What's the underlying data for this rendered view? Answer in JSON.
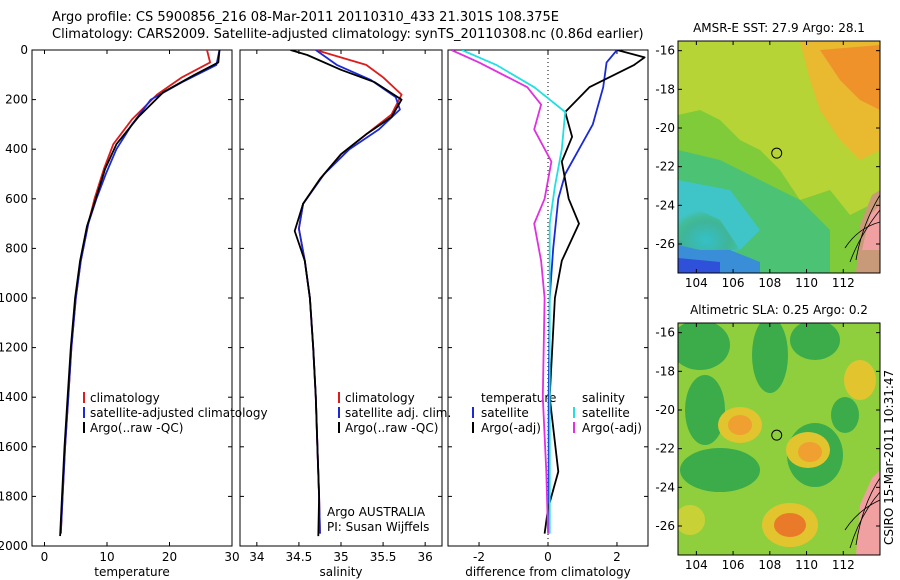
{
  "header": {
    "line1": "Argo profile: CS 5900856_216 08-Mar-2011 20110310_433 21.301S 108.375E",
    "line2": "Climatology: CARS2009. Satellite-adjusted climatology: synTS_20110308.nc (0.86d earlier)"
  },
  "side_text": "CSIRO 15-Mar-2011 10:31:47",
  "colors": {
    "climatology": "#dd1c1c",
    "satellite": "#1a2ad6",
    "argo": "#000000",
    "salinity_satellite": "#22e0e0",
    "salinity_argo": "#e030e0"
  },
  "chart_data": [
    {
      "type": "line",
      "xlabel": "temperature",
      "ylabel": "",
      "xlim": [
        -2,
        30
      ],
      "ylim": [
        2000,
        0
      ],
      "y_reversed": true,
      "xticks": [
        "0",
        "10",
        "20",
        "30"
      ],
      "yticks": [
        "0",
        "200",
        "400",
        "600",
        "800",
        "1000",
        "1200",
        "1400",
        "1600",
        "1800",
        "2000"
      ],
      "legend": [
        "climatology",
        "satellite-adjusted climatology",
        "Argo(..raw -QC)"
      ],
      "series": [
        {
          "name": "climatology",
          "color": "#dd1c1c",
          "points": [
            [
              26,
              0
            ],
            [
              26.5,
              50
            ],
            [
              22,
              110
            ],
            [
              18,
              180
            ],
            [
              14,
              280
            ],
            [
              11,
              380
            ],
            [
              9.5,
              480
            ],
            [
              8,
              600
            ],
            [
              7,
              700
            ],
            [
              5.8,
              850
            ],
            [
              5,
              1000
            ],
            [
              4.3,
              1200
            ],
            [
              3.8,
              1400
            ],
            [
              3.3,
              1600
            ],
            [
              2.9,
              1800
            ],
            [
              2.6,
              1950
            ]
          ]
        },
        {
          "name": "satellite-adjusted climatology",
          "color": "#1a2ad6",
          "points": [
            [
              28,
              0
            ],
            [
              27.5,
              60
            ],
            [
              22,
              130
            ],
            [
              17,
              200
            ],
            [
              14,
              300
            ],
            [
              11.5,
              400
            ],
            [
              9.8,
              500
            ],
            [
              8.3,
              600
            ],
            [
              7,
              700
            ],
            [
              5.8,
              850
            ],
            [
              5,
              1000
            ],
            [
              4.3,
              1200
            ],
            [
              3.8,
              1400
            ],
            [
              3.3,
              1600
            ],
            [
              2.9,
              1800
            ],
            [
              2.6,
              1950
            ]
          ]
        },
        {
          "name": "Argo(..raw -QC)",
          "color": "#000000",
          "points": [
            [
              28,
              0
            ],
            [
              27.8,
              50
            ],
            [
              24,
              100
            ],
            [
              19,
              170
            ],
            [
              15,
              270
            ],
            [
              11.5,
              380
            ],
            [
              9.7,
              480
            ],
            [
              8.2,
              600
            ],
            [
              6.8,
              710
            ],
            [
              5.7,
              850
            ],
            [
              4.9,
              1000
            ],
            [
              4.2,
              1200
            ],
            [
              3.7,
              1400
            ],
            [
              3.2,
              1600
            ],
            [
              2.8,
              1800
            ],
            [
              2.5,
              1960
            ]
          ]
        }
      ]
    },
    {
      "type": "line",
      "xlabel": "salinity",
      "xlim": [
        33.8,
        36.2
      ],
      "ylim": [
        2000,
        0
      ],
      "xticks": [
        "34",
        "34.5",
        "35",
        "35.5",
        "36"
      ],
      "legend": [
        "climatology",
        "satellite adj. clim.",
        "Argo(..raw -QC)"
      ],
      "annotation": [
        "Argo AUSTRALIA",
        "PI: Susan Wijffels"
      ],
      "series": [
        {
          "name": "climatology",
          "color": "#dd1c1c",
          "points": [
            [
              34.7,
              0
            ],
            [
              35.3,
              60
            ],
            [
              35.5,
              110
            ],
            [
              35.72,
              180
            ],
            [
              35.6,
              260
            ],
            [
              35.3,
              340
            ],
            [
              35.0,
              420
            ],
            [
              34.75,
              520
            ],
            [
              34.55,
              620
            ],
            [
              34.5,
              720
            ],
            [
              34.57,
              850
            ],
            [
              34.63,
              1000
            ],
            [
              34.67,
              1200
            ],
            [
              34.7,
              1400
            ],
            [
              34.72,
              1600
            ],
            [
              34.74,
              1800
            ],
            [
              34.75,
              1950
            ]
          ]
        },
        {
          "name": "satellite adj. clim.",
          "color": "#1a2ad6",
          "points": [
            [
              34.7,
              0
            ],
            [
              34.95,
              60
            ],
            [
              35.35,
              120
            ],
            [
              35.65,
              190
            ],
            [
              35.7,
              240
            ],
            [
              35.45,
              320
            ],
            [
              35.1,
              400
            ],
            [
              34.8,
              500
            ],
            [
              34.55,
              620
            ],
            [
              34.5,
              720
            ],
            [
              34.57,
              850
            ],
            [
              34.63,
              1000
            ],
            [
              34.67,
              1200
            ],
            [
              34.7,
              1400
            ],
            [
              34.72,
              1600
            ],
            [
              34.74,
              1800
            ],
            [
              34.75,
              1950
            ]
          ]
        },
        {
          "name": "Argo(..raw -QC)",
          "color": "#000000",
          "points": [
            [
              34.4,
              0
            ],
            [
              34.6,
              20
            ],
            [
              35.0,
              80
            ],
            [
              35.4,
              130
            ],
            [
              35.72,
              200
            ],
            [
              35.6,
              270
            ],
            [
              35.3,
              340
            ],
            [
              35.0,
              420
            ],
            [
              34.75,
              520
            ],
            [
              34.55,
              620
            ],
            [
              34.45,
              730
            ],
            [
              34.57,
              850
            ],
            [
              34.63,
              1000
            ],
            [
              34.67,
              1200
            ],
            [
              34.7,
              1400
            ],
            [
              34.72,
              1600
            ],
            [
              34.74,
              1800
            ],
            [
              34.73,
              1960
            ]
          ]
        }
      ]
    },
    {
      "type": "line",
      "xlabel": "difference from climatology",
      "xlim": [
        -2.9,
        2.9
      ],
      "ylim": [
        2000,
        0
      ],
      "xticks": [
        "-2",
        "0",
        "2"
      ],
      "legend_left": {
        "heading": "temperature",
        "items": [
          "satellite",
          "Argo(-adj)"
        ]
      },
      "legend_right": {
        "heading": "salinity",
        "items": [
          "satellite",
          "Argo(-adj)"
        ]
      },
      "series": [
        {
          "name": "temperature satellite",
          "color": "#1a2ad6",
          "points": [
            [
              2.0,
              0
            ],
            [
              1.7,
              50
            ],
            [
              1.6,
              150
            ],
            [
              1.3,
              300
            ],
            [
              0.9,
              400
            ],
            [
              0.5,
              500
            ],
            [
              0.3,
              600
            ],
            [
              0.15,
              800
            ],
            [
              0.05,
              1000
            ],
            [
              0.02,
              1400
            ],
            [
              0.02,
              1950
            ]
          ]
        },
        {
          "name": "temperature Argo(-adj)",
          "color": "#000000",
          "points": [
            [
              2.0,
              0
            ],
            [
              2.8,
              30
            ],
            [
              2.5,
              60
            ],
            [
              1.2,
              150
            ],
            [
              0.5,
              250
            ],
            [
              0.7,
              350
            ],
            [
              0.4,
              450
            ],
            [
              0.6,
              600
            ],
            [
              0.9,
              700
            ],
            [
              0.4,
              850
            ],
            [
              0.2,
              1000
            ],
            [
              0.05,
              1400
            ],
            [
              0.3,
              1700
            ],
            [
              0.0,
              1850
            ],
            [
              -0.1,
              1950
            ]
          ]
        },
        {
          "name": "salinity satellite",
          "color": "#22e0e0",
          "points": [
            [
              -2.5,
              0
            ],
            [
              -1.5,
              60
            ],
            [
              -0.4,
              150
            ],
            [
              0.5,
              250
            ],
            [
              0.4,
              400
            ],
            [
              0.2,
              550
            ],
            [
              0.05,
              700
            ],
            [
              0.05,
              1000
            ],
            [
              0.05,
              1400
            ],
            [
              0.05,
              1950
            ]
          ]
        },
        {
          "name": "salinity Argo(-adj)",
          "color": "#e030e0",
          "points": [
            [
              -2.8,
              0
            ],
            [
              -2.0,
              50
            ],
            [
              -0.6,
              150
            ],
            [
              -0.2,
              220
            ],
            [
              -0.4,
              320
            ],
            [
              0.1,
              450
            ],
            [
              -0.1,
              600
            ],
            [
              -0.4,
              700
            ],
            [
              -0.2,
              850
            ],
            [
              -0.1,
              1000
            ],
            [
              -0.15,
              1400
            ],
            [
              -0.05,
              1700
            ],
            [
              0.0,
              1950
            ]
          ]
        }
      ]
    },
    {
      "type": "heatmap",
      "title": "AMSR-E SST: 27.9 Argo: 28.1",
      "xlim": [
        103,
        114
      ],
      "ylim": [
        -27.5,
        -15.5
      ],
      "xticks": [
        "104",
        "106",
        "108",
        "110",
        "112"
      ],
      "yticks": [
        "-16",
        "-18",
        "-20",
        "-22",
        "-24",
        "-26"
      ],
      "marker": {
        "lon": 108.375,
        "lat": -21.301
      }
    },
    {
      "type": "heatmap",
      "title": "Altimetric SLA: 0.25 Argo: 0.2",
      "xlim": [
        103,
        114
      ],
      "ylim": [
        -27.5,
        -15.5
      ],
      "xticks": [
        "104",
        "106",
        "108",
        "110",
        "112"
      ],
      "yticks": [
        "-16",
        "-18",
        "-20",
        "-22",
        "-24",
        "-26"
      ],
      "marker": {
        "lon": 108.375,
        "lat": -21.301
      }
    }
  ]
}
